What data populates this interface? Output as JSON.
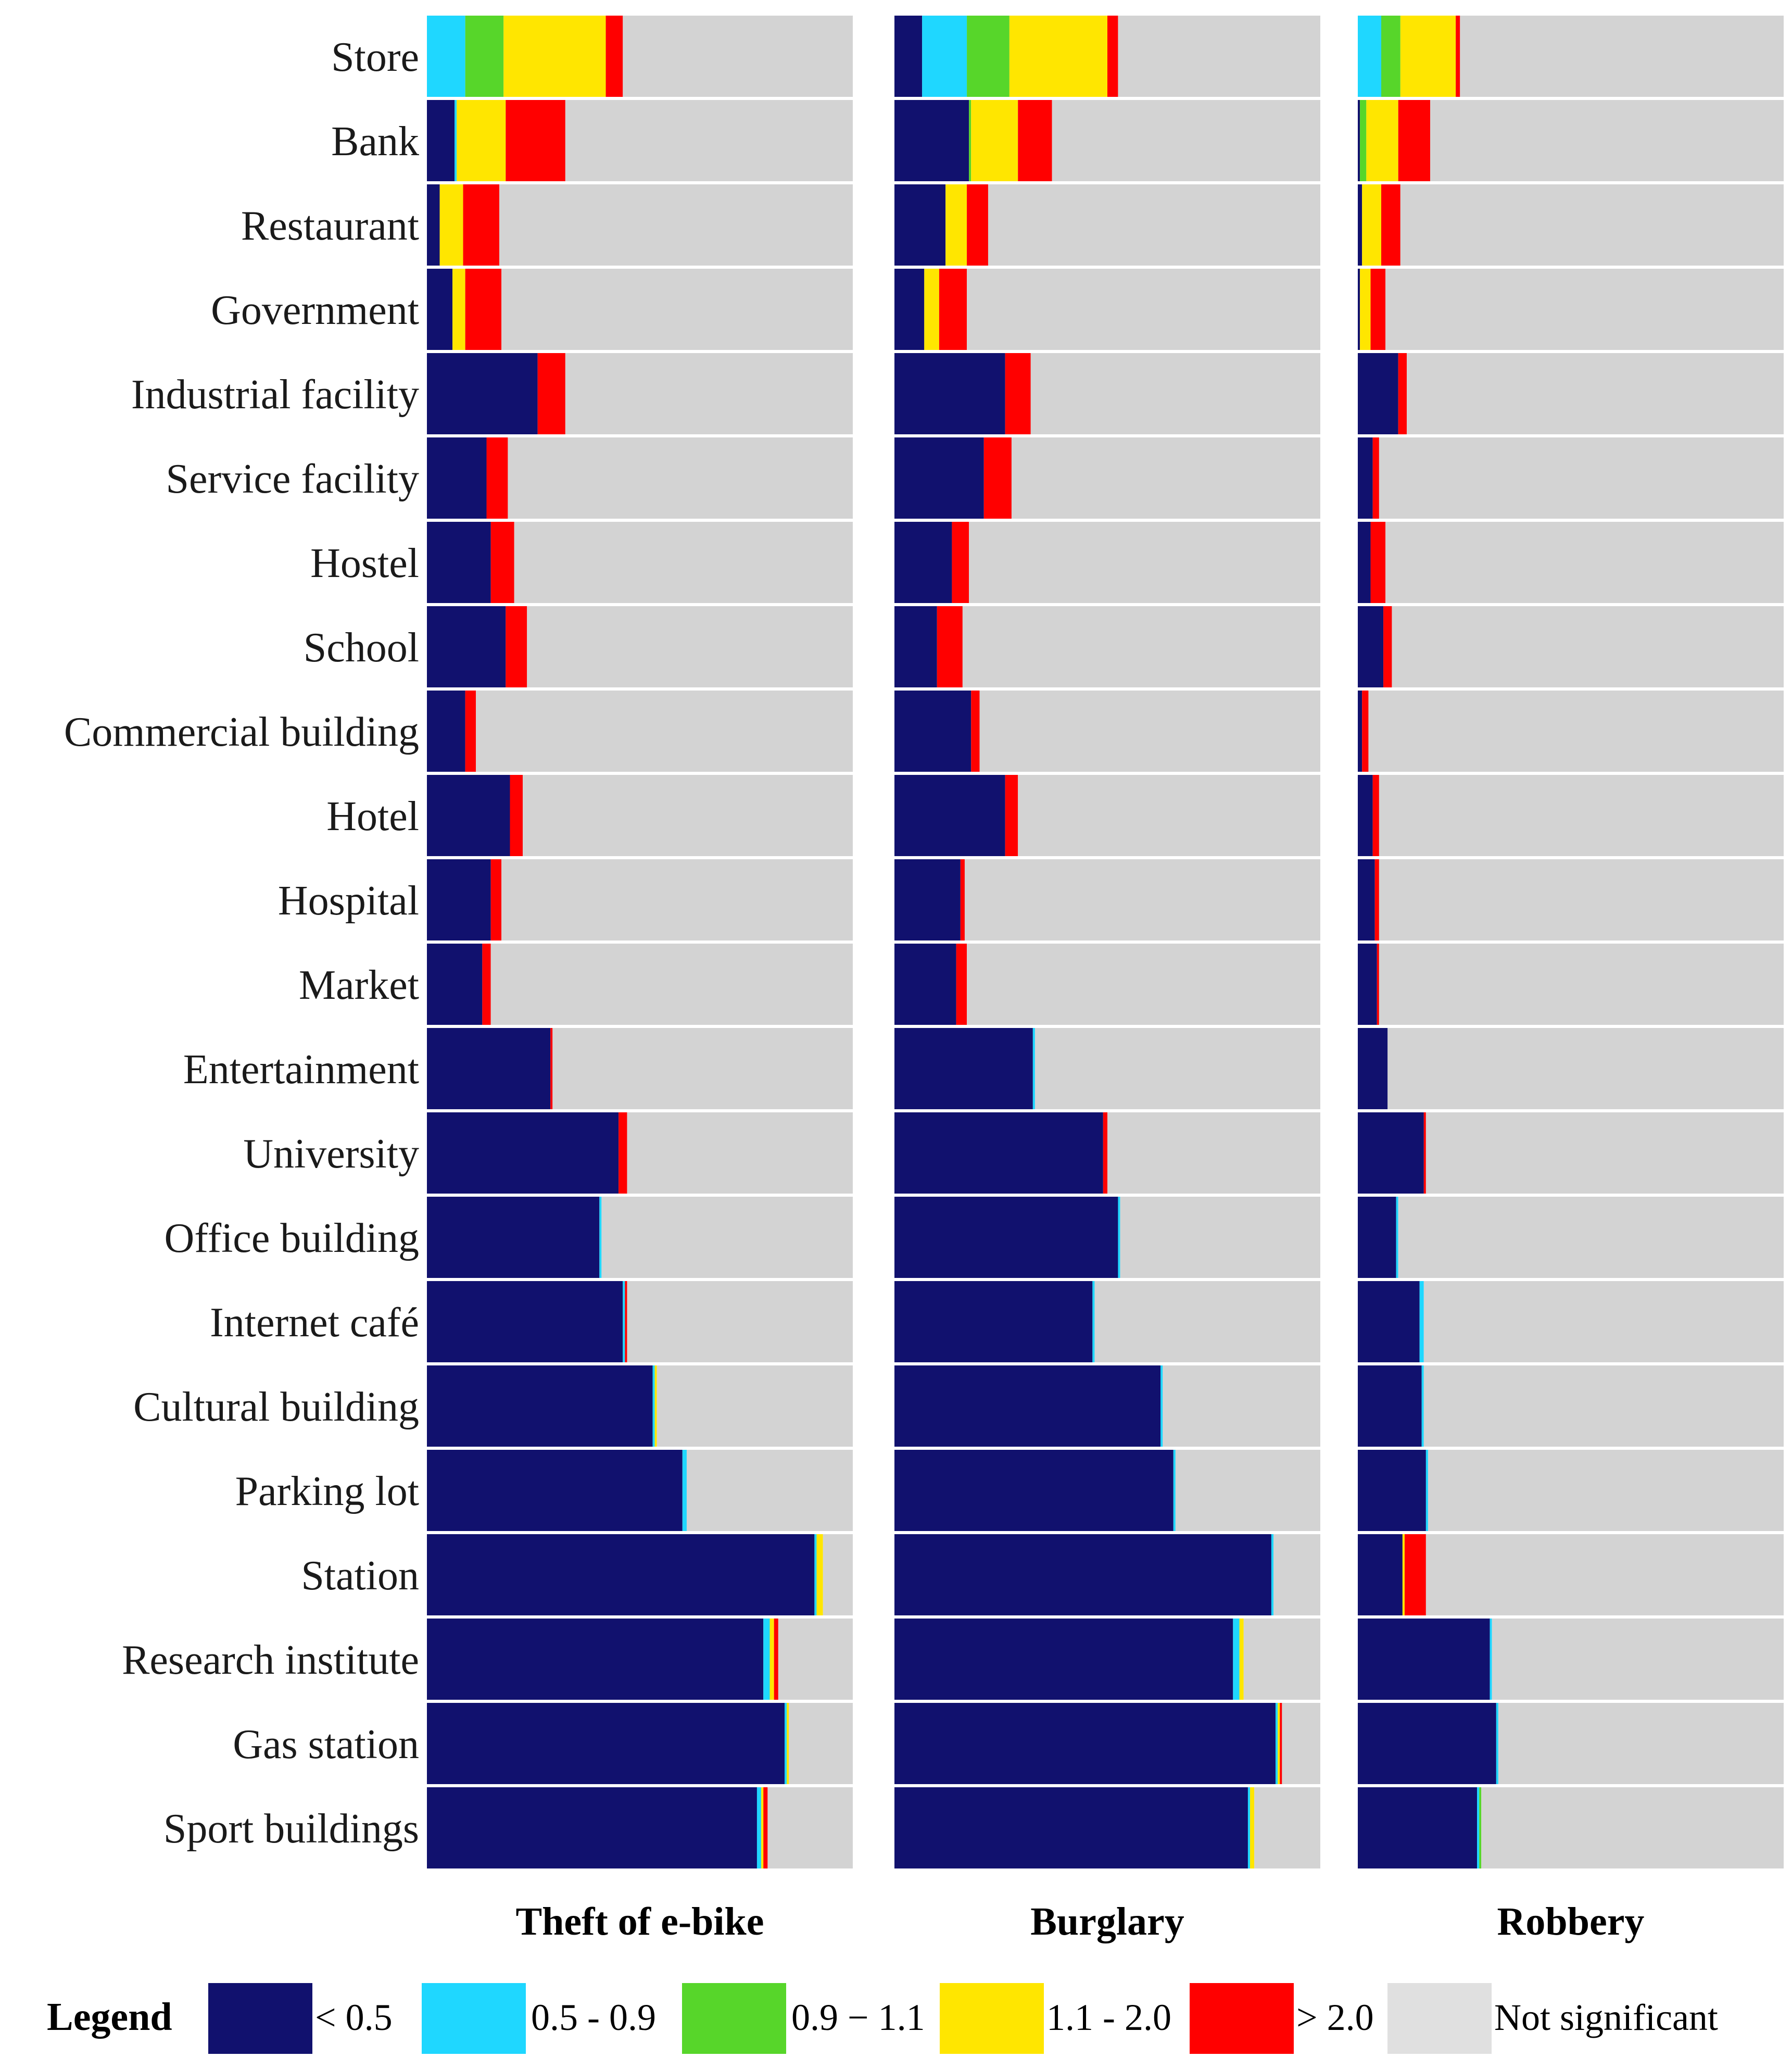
{
  "chart_data": {
    "type": "bar",
    "orientation": "horizontal-stacked-100pct",
    "value_unit": "percent of category (estimated)",
    "categories": [
      "Store",
      "Bank",
      "Restaurant",
      "Government",
      "Industrial facility",
      "Service facility",
      "Hostel",
      "School",
      "Commercial building",
      "Hotel",
      "Hospital",
      "Market",
      "Entertainment",
      "University",
      "Office building",
      "Internet café",
      "Cultural building",
      "Parking lot",
      "Station",
      "Research institute",
      "Gas station",
      "Sport buildings"
    ],
    "classes": [
      {
        "key": "lt05",
        "label": "< 0.5",
        "color": "#11116e"
      },
      {
        "key": "c0509",
        "label": "0.5 - 0.9",
        "color": "#1fd7ff"
      },
      {
        "key": "c0911",
        "label": "0.9 − 1.1",
        "color": "#57d62a"
      },
      {
        "key": "c1120",
        "label": "1.1 - 2.0",
        "color": "#ffe600"
      },
      {
        "key": "gt20",
        "label": "> 2.0",
        "color": "#ff0000"
      },
      {
        "key": "ns",
        "label": "Not significant",
        "color": "#d3d3d3"
      }
    ],
    "panels": [
      {
        "title": "Theft of e-bike",
        "series": [
          {
            "name": "< 0.5",
            "values": [
              0,
              6.5,
              3,
              6,
              26,
              14,
              15,
              18.5,
              9,
              19.5,
              15,
              13,
              29,
              45,
              40.5,
              46,
              53,
              60,
              91,
              79,
              84,
              77.5
            ]
          },
          {
            "name": "0.5 - 0.9",
            "values": [
              9,
              0.5,
              0,
              0,
              0,
              0,
              0,
              0,
              0,
              0,
              0,
              0,
              0,
              0,
              0.5,
              0.5,
              0.5,
              1,
              0.5,
              1.5,
              0.5,
              1
            ]
          },
          {
            "name": "0.9 − 1.1",
            "values": [
              9,
              0,
              0,
              0,
              0,
              0,
              0,
              0,
              0,
              0,
              0,
              0,
              0,
              0,
              0,
              0,
              0,
              0,
              0,
              0,
              0,
              0
            ]
          },
          {
            "name": "1.1 - 2.0",
            "values": [
              24,
              11.5,
              5.5,
              3,
              0,
              0,
              0,
              0,
              0,
              0,
              0,
              0,
              0,
              0,
              0,
              0,
              0.5,
              0,
              1.5,
              1,
              0.5,
              0.5
            ]
          },
          {
            "name": "> 2.0",
            "values": [
              4,
              14,
              8.5,
              8.5,
              6.5,
              5,
              5.5,
              5,
              2.5,
              3,
              2.5,
              2,
              0.5,
              2,
              0,
              0.5,
              0,
              0,
              0,
              1,
              0,
              1
            ]
          },
          {
            "name": "Not significant",
            "values": [
              54,
              67.5,
              83,
              82.5,
              67.5,
              81,
              79.5,
              76.5,
              88.5,
              77.5,
              82.5,
              85,
              70.5,
              53,
              59,
              53,
              46,
              39,
              7,
              17.5,
              15,
              20
            ]
          }
        ]
      },
      {
        "title": "Burglary",
        "series": [
          {
            "name": "< 0.5",
            "values": [
              6.5,
              17.5,
              12,
              7,
              26,
              21,
              13.5,
              10,
              18,
              26,
              15.5,
              14.5,
              32.5,
              49,
              52.5,
              46.5,
              62.5,
              65.5,
              88.5,
              79.5,
              89.5,
              83
            ]
          },
          {
            "name": "0.5 - 0.9",
            "values": [
              10.5,
              0,
              0,
              0,
              0,
              0,
              0,
              0,
              0,
              0,
              0,
              0,
              0.5,
              0,
              0.5,
              0.5,
              0.5,
              0.5,
              0.5,
              1.5,
              0.5,
              0.5
            ]
          },
          {
            "name": "0.9 − 1.1",
            "values": [
              10,
              0.5,
              0,
              0,
              0,
              0,
              0,
              0,
              0,
              0,
              0,
              0,
              0,
              0,
              0,
              0,
              0,
              0,
              0,
              0,
              0,
              0
            ]
          },
          {
            "name": "1.1 - 2.0",
            "values": [
              23,
              11,
              5,
              3.5,
              0,
              0,
              0,
              0,
              0,
              0,
              0,
              0,
              0,
              0,
              0,
              0,
              0,
              0,
              0,
              1,
              0.5,
              1
            ]
          },
          {
            "name": "> 2.0",
            "values": [
              2.5,
              8,
              5,
              6.5,
              6,
              6.5,
              4,
              6,
              2,
              3,
              1,
              2.5,
              0,
              1,
              0,
              0,
              0,
              0,
              0,
              0,
              0.5,
              0
            ]
          },
          {
            "name": "Not significant",
            "values": [
              47.5,
              63,
              78,
              83,
              68,
              72.5,
              82.5,
              84,
              80,
              71,
              83.5,
              83,
              67,
              50,
              47,
              53,
              37,
              34,
              11,
              18,
              9,
              15.5
            ]
          }
        ]
      },
      {
        "title": "Robbery",
        "series": [
          {
            "name": "< 0.5",
            "values": [
              0,
              0.5,
              1,
              0.5,
              9.5,
              3.5,
              3,
              6,
              1,
              3.5,
              4,
              4.5,
              7,
              15.5,
              9,
              14.5,
              15,
              16,
              10.5,
              31,
              32.5,
              28
            ]
          },
          {
            "name": "0.5 - 0.9",
            "values": [
              5.5,
              0,
              0,
              0,
              0,
              0,
              0,
              0,
              0,
              0,
              0,
              0,
              0,
              0,
              0.5,
              1,
              0.5,
              0.5,
              0,
              0.5,
              0.5,
              0.5
            ]
          },
          {
            "name": "0.9 − 1.1",
            "values": [
              4.5,
              1.5,
              0,
              0,
              0,
              0,
              0,
              0,
              0,
              0,
              0,
              0,
              0,
              0,
              0,
              0,
              0,
              0,
              0,
              0,
              0,
              0.5
            ]
          },
          {
            "name": "1.1 - 2.0",
            "values": [
              13,
              7.5,
              4.5,
              2.5,
              0,
              0,
              0,
              0,
              0,
              0,
              0,
              0,
              0,
              0,
              0,
              0,
              0,
              0,
              0.5,
              0,
              0,
              0
            ]
          },
          {
            "name": "> 2.0",
            "values": [
              1,
              7.5,
              4.5,
              3.5,
              2,
              1.5,
              3.5,
              2,
              1.5,
              1.5,
              1,
              0.5,
              0,
              0.5,
              0,
              0,
              0,
              0,
              5,
              0,
              0,
              0
            ]
          },
          {
            "name": "Not significant",
            "values": [
              76,
              83,
              90,
              93.5,
              88.5,
              95,
              93.5,
              92,
              97.5,
              95,
              95,
              95,
              93,
              84,
              90.5,
              84.5,
              84.5,
              83.5,
              84,
              68.5,
              67,
              71
            ]
          }
        ]
      }
    ],
    "legend": {
      "title": "Legend",
      "placement": "bottom"
    },
    "xlim": [
      0,
      100
    ],
    "grid": false
  }
}
